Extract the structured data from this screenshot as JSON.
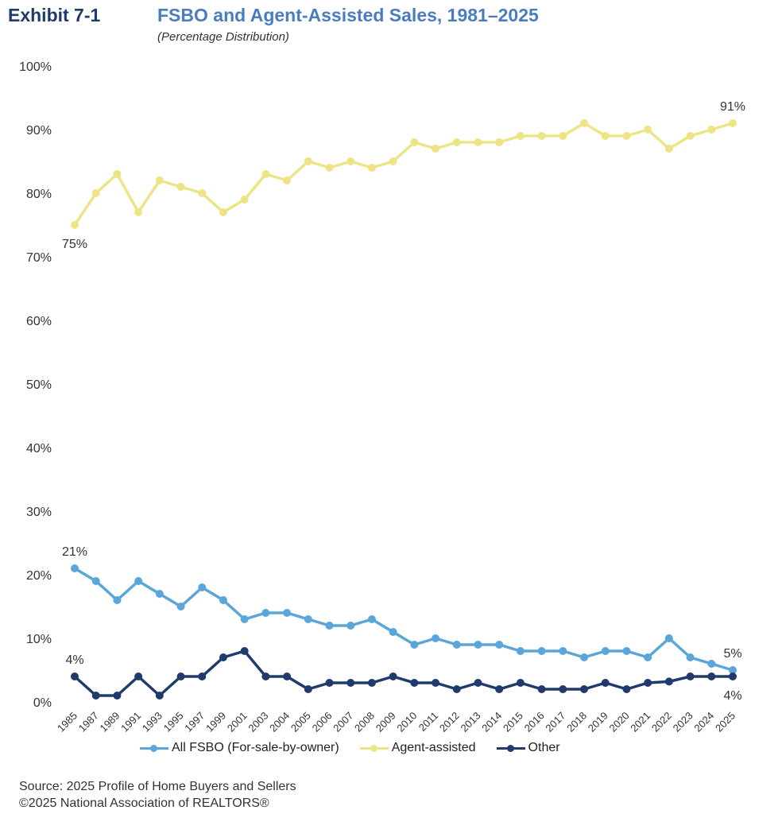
{
  "header": {
    "exhibit": "Exhibit 7-1",
    "title": "FSBO and Agent-Assisted Sales, 1981–2025",
    "subtitle": "(Percentage Distribution)"
  },
  "footer": {
    "source": "Source: 2025 Profile of Home Buyers and Sellers",
    "copyright": "©2025 National Association of REALTORS®"
  },
  "chart_data": {
    "type": "line",
    "title": "FSBO and Agent-Assisted Sales, 1981–2025",
    "subtitle": "(Percentage Distribution)",
    "xlabel": "",
    "ylabel": "",
    "ylim": [
      0,
      100
    ],
    "yticks": [
      0,
      10,
      20,
      30,
      40,
      50,
      60,
      70,
      80,
      90,
      100
    ],
    "ytick_labels": [
      "0%",
      "10%",
      "20%",
      "30%",
      "40%",
      "50%",
      "60%",
      "70%",
      "80%",
      "90%",
      "100%"
    ],
    "grid": false,
    "legend_position": "bottom",
    "categories": [
      "1985",
      "1987",
      "1989",
      "1991",
      "1993",
      "1995",
      "1997",
      "1999",
      "2001",
      "2003",
      "2004",
      "2005",
      "2006",
      "2007",
      "2008",
      "2009",
      "2010",
      "2011",
      "2012",
      "2013",
      "2014",
      "2015",
      "2016",
      "2017",
      "2018",
      "2019",
      "2020",
      "2021",
      "2022",
      "2023",
      "2024",
      "2025"
    ],
    "series": [
      {
        "name": "All FSBO (For-sale-by-owner)",
        "color": "#5aa5da",
        "values": [
          21,
          19,
          16,
          19,
          17,
          15,
          18,
          16,
          13,
          14,
          14,
          13,
          12,
          12,
          13,
          11,
          9,
          10,
          9,
          9,
          9,
          8,
          8,
          8,
          7,
          8,
          8,
          7,
          10,
          7,
          6,
          5
        ]
      },
      {
        "name": "Agent-assisted",
        "color": "#ede585",
        "values": [
          75,
          80,
          83,
          77,
          82,
          81,
          80,
          77,
          79,
          83,
          82,
          85,
          84,
          85,
          84,
          85,
          88,
          87,
          88,
          88,
          88,
          89,
          89,
          89,
          91,
          89,
          89,
          90,
          87,
          89,
          90,
          91
        ]
      },
      {
        "name": "Other",
        "color": "#1f3a6b",
        "values": [
          4,
          1,
          1,
          4,
          1,
          4,
          4,
          7,
          8,
          4,
          4,
          2,
          3,
          3,
          3,
          4,
          3,
          3,
          2,
          3,
          2,
          3,
          2,
          2,
          2,
          3,
          2,
          3,
          3.2,
          4,
          4,
          4
        ]
      }
    ],
    "annotations": [
      {
        "series": 1,
        "index": 0,
        "text": "75%",
        "placement": "below"
      },
      {
        "series": 1,
        "index": 31,
        "text": "91%",
        "placement": "above"
      },
      {
        "series": 0,
        "index": 0,
        "text": "21%",
        "placement": "above"
      },
      {
        "series": 2,
        "index": 0,
        "text": "4%",
        "placement": "above"
      },
      {
        "series": 0,
        "index": 31,
        "text": "5%",
        "placement": "above"
      },
      {
        "series": 2,
        "index": 31,
        "text": "4%",
        "placement": "below"
      }
    ]
  }
}
